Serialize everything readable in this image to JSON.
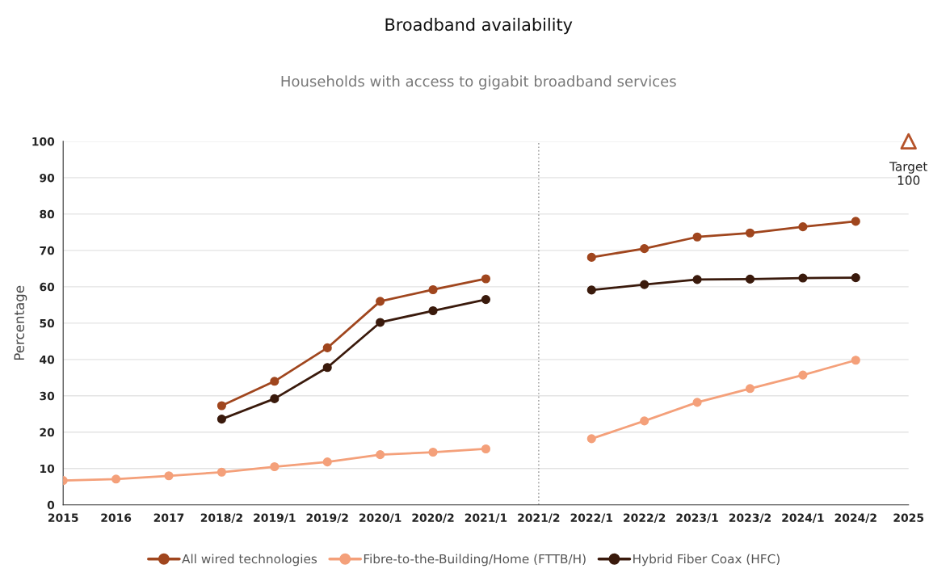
{
  "chart_data": {
    "type": "line",
    "title": "Broadband availability",
    "subtitle": "Households with access to gigabit broadband services",
    "ylabel": "Percentage",
    "categories": [
      "2015",
      "2016",
      "2017",
      "2018/2",
      "2019/1",
      "2019/2",
      "2020/1",
      "2020/2",
      "2021/1",
      "2021/2",
      "2022/1",
      "2022/2",
      "2023/1",
      "2023/2",
      "2024/1",
      "2024/2",
      "2025"
    ],
    "series": [
      {
        "name": "All wired technologies",
        "color": "#a0461e",
        "values": [
          null,
          null,
          null,
          27.3,
          34,
          43.2,
          56,
          59.2,
          62.2,
          null,
          68.1,
          70.5,
          73.7,
          74.8,
          76.5,
          78,
          null
        ]
      },
      {
        "name": "Fibre-to-the-Building/Home (FTTB/H)",
        "color": "#f4a07a",
        "values": [
          6.7,
          7.1,
          8,
          9,
          10.5,
          11.8,
          13.8,
          14.5,
          15.4,
          null,
          18.2,
          23.1,
          28.2,
          32,
          35.7,
          39.8,
          null
        ]
      },
      {
        "name": "Hybrid Fiber Coax (HFC)",
        "color": "#3a1a0c",
        "values": [
          null,
          null,
          null,
          23.6,
          29.2,
          37.8,
          50.2,
          53.4,
          56.5,
          null,
          59.1,
          60.6,
          62,
          62.1,
          62.4,
          62.5,
          null
        ]
      },
      {
        "name": "Target",
        "type": "scatter",
        "marker": "triangle",
        "color": "#b5532a",
        "values": [
          null,
          null,
          null,
          null,
          null,
          null,
          null,
          null,
          null,
          null,
          null,
          null,
          null,
          null,
          null,
          null,
          100
        ],
        "value_labels": [
          null,
          null,
          null,
          null,
          null,
          null,
          null,
          null,
          null,
          null,
          null,
          null,
          null,
          null,
          null,
          null,
          "100"
        ]
      }
    ],
    "ylim": [
      0,
      100
    ],
    "yticks": [
      0,
      10,
      20,
      30,
      40,
      50,
      60,
      70,
      80,
      90,
      100
    ],
    "grid": "y",
    "legend": "bottom",
    "marker": "circle",
    "line_style": "solid",
    "ref_lines": [
      {
        "axis": "x",
        "value": "2021/2",
        "color": "#aaaaaa",
        "line_style": "dotted"
      }
    ]
  }
}
